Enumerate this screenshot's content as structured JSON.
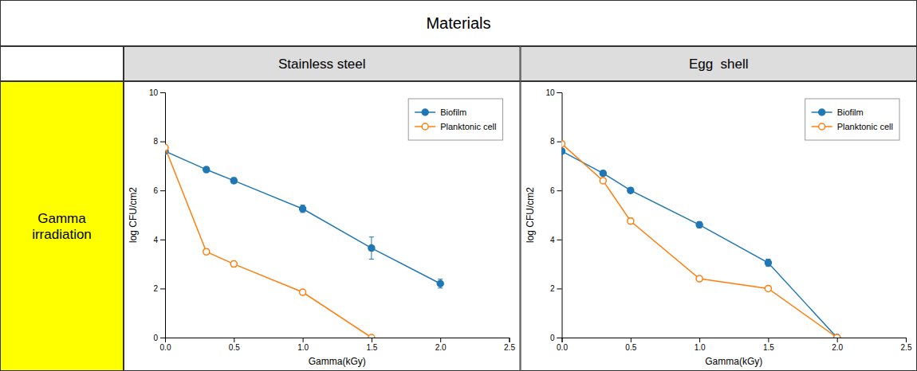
{
  "title": "Materials",
  "annotations": [
    "Gamma\nirradiation"
  ],
  "chart_data": [
    {
      "type": "line",
      "title": "Stainless steel",
      "xlabel": "Gamma(kGy)",
      "ylabel": "log CFU/cm2",
      "xlim": [
        0,
        2.5
      ],
      "ylim": [
        0,
        10
      ],
      "xticks": [
        {
          "value": 0,
          "label": "0.0"
        },
        0.5,
        {
          "value": 1,
          "label": "1.0"
        },
        1.5,
        {
          "value": 2,
          "label": "2.0"
        },
        2.5
      ],
      "yticks": [
        0,
        2,
        4,
        6,
        8,
        10
      ],
      "grid": false,
      "legend": "upper right",
      "series": [
        {
          "name": "Biofilm",
          "marker": "circle",
          "x": [
            0,
            0.3,
            0.5,
            1.0,
            1.5,
            2.0
          ],
          "values": [
            7.6,
            6.85,
            6.4,
            5.25,
            3.65,
            2.2
          ],
          "errors": [
            0.1,
            0.1,
            0.12,
            0.15,
            0.45,
            0.18
          ]
        },
        {
          "name": "Planktonic cell",
          "marker": "circle-open",
          "x": [
            0,
            0.3,
            0.5,
            1.0,
            1.5
          ],
          "values": [
            7.75,
            3.5,
            3.0,
            1.85,
            0
          ],
          "errors": [
            0.1,
            0.12,
            0.12,
            0.1,
            0
          ]
        }
      ]
    },
    {
      "type": "line",
      "title": "Egg  shell",
      "xlabel": "Gamma(kGy)",
      "ylabel": "log CFU/cm2",
      "xlim": [
        0,
        2.5
      ],
      "ylim": [
        0,
        10
      ],
      "xticks": [
        {
          "value": 0,
          "label": "0.0"
        },
        0.5,
        {
          "value": 1,
          "label": "1.0"
        },
        1.5,
        {
          "value": 2,
          "label": "2.0"
        },
        2.5
      ],
      "yticks": [
        0,
        2,
        4,
        6,
        8,
        10
      ],
      "grid": false,
      "legend": "upper right",
      "series": [
        {
          "name": "Biofilm",
          "marker": "circle",
          "x": [
            0,
            0.3,
            0.5,
            1.0,
            1.5,
            2.0
          ],
          "values": [
            7.6,
            6.7,
            6.0,
            4.6,
            3.05,
            0
          ],
          "errors": [
            0.1,
            0.1,
            0.1,
            0.12,
            0.15,
            0
          ]
        },
        {
          "name": "Planktonic cell",
          "marker": "circle-open",
          "x": [
            0,
            0.3,
            0.5,
            1.0,
            1.5,
            2.0
          ],
          "values": [
            7.9,
            6.4,
            4.75,
            2.4,
            2.0,
            0
          ],
          "errors": [
            0.1,
            0.1,
            0.12,
            0.1,
            0.1,
            0
          ]
        }
      ]
    }
  ]
}
